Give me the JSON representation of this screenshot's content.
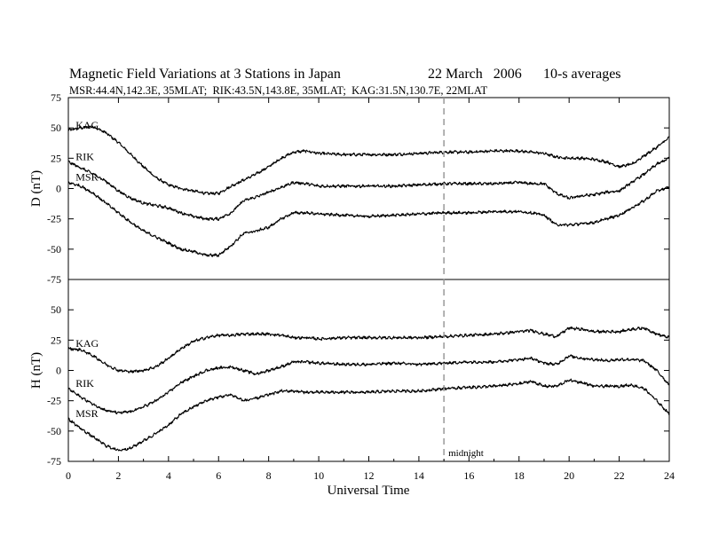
{
  "chart_data": {
    "type": "line",
    "title": "Magnetic Field Variations at 3 Stations in Japan",
    "date": "22 March   2006",
    "averaging": "10-s averages",
    "subtitle": "MSR:44.4N,142.3E, 35MLAT;  RIK:43.5N,143.8E, 35MLAT;  KAG:31.5N,130.7E, 22MLAT",
    "xlabel": "Universal Time",
    "xlim": [
      0,
      24
    ],
    "xticks": [
      0,
      2,
      4,
      6,
      8,
      10,
      12,
      14,
      16,
      18,
      20,
      22,
      24
    ],
    "midnight_marker": {
      "x": 15,
      "label": "midnight"
    },
    "panels": [
      {
        "ylabel": "D (nT)",
        "ylim": [
          -75,
          75
        ],
        "yticks": [
          75,
          50,
          25,
          0,
          -25,
          -50,
          -75
        ],
        "series": [
          {
            "name": "KAG",
            "x": [
              0,
              0.5,
              1,
              1.5,
              2,
              2.5,
              3,
              3.5,
              4,
              4.5,
              5,
              5.5,
              6,
              6.5,
              7,
              7.5,
              8,
              8.5,
              9,
              9.5,
              10,
              11,
              12,
              13,
              14,
              15,
              16,
              17,
              18,
              18.5,
              19,
              19.5,
              20,
              20.5,
              21,
              21.5,
              22,
              22.5,
              23,
              23.5,
              24
            ],
            "y": [
              48,
              50,
              51,
              46,
              38,
              28,
              18,
              9,
              3,
              0,
              -2,
              -4,
              -4,
              2,
              7,
              12,
              18,
              25,
              30,
              31,
              29,
              28,
              28,
              28,
              29,
              30,
              30,
              31,
              31,
              30,
              29,
              26,
              25,
              25,
              24,
              22,
              18,
              20,
              27,
              34,
              42
            ]
          },
          {
            "name": "RIK",
            "x": [
              0,
              0.5,
              1,
              1.5,
              2,
              2.5,
              3,
              3.5,
              4,
              4.5,
              5,
              5.5,
              6,
              6.5,
              7,
              7.5,
              8,
              8.5,
              9,
              9.5,
              10,
              11,
              12,
              13,
              14,
              15,
              16,
              17,
              18,
              18.5,
              19,
              19.5,
              20,
              20.5,
              21,
              21.5,
              22,
              22.5,
              23,
              23.5,
              24
            ],
            "y": [
              22,
              17,
              12,
              6,
              -2,
              -8,
              -12,
              -14,
              -16,
              -20,
              -23,
              -25,
              -25,
              -20,
              -10,
              -7,
              -3,
              1,
              5,
              4,
              2,
              2,
              2,
              2,
              3,
              4,
              4,
              4,
              5,
              4,
              4,
              -4,
              -8,
              -6,
              -5,
              -3,
              -2,
              5,
              12,
              20,
              25
            ]
          },
          {
            "name": "MSR",
            "x": [
              0,
              0.5,
              1,
              1.5,
              2,
              2.5,
              3,
              3.5,
              4,
              4.5,
              5,
              5.5,
              6,
              6.5,
              7,
              7.5,
              8,
              8.5,
              9,
              9.5,
              10,
              11,
              12,
              13,
              14,
              15,
              16,
              17,
              18,
              18.5,
              19,
              19.5,
              20,
              20.5,
              21,
              21.5,
              22,
              22.5,
              23,
              23.5,
              24
            ],
            "y": [
              5,
              2,
              -4,
              -12,
              -20,
              -28,
              -35,
              -40,
              -45,
              -50,
              -52,
              -55,
              -55,
              -47,
              -37,
              -35,
              -32,
              -25,
              -20,
              -20,
              -21,
              -22,
              -23,
              -22,
              -21,
              -20,
              -20,
              -19,
              -19,
              -20,
              -22,
              -30,
              -30,
              -29,
              -28,
              -25,
              -22,
              -16,
              -10,
              -2,
              1
            ]
          }
        ]
      },
      {
        "ylabel": "H (nT)",
        "ylim": [
          -75,
          75
        ],
        "yticks": [
          75,
          50,
          25,
          0,
          -25,
          -50,
          -75
        ],
        "series": [
          {
            "name": "KAG",
            "x": [
              0,
              0.5,
              1,
              1.5,
              2,
              2.5,
              3,
              3.5,
              4,
              4.5,
              5,
              5.5,
              6,
              6.5,
              7,
              7.5,
              8,
              8.5,
              9,
              9.5,
              10,
              11,
              12,
              13,
              14,
              15,
              16,
              17,
              18,
              18.5,
              19,
              19.5,
              20,
              20.5,
              21,
              21.5,
              22,
              22.5,
              23,
              23.5,
              24
            ],
            "y": [
              18,
              17,
              12,
              5,
              0,
              -1,
              0,
              3,
              10,
              18,
              24,
              27,
              29,
              29,
              30,
              30,
              30,
              29,
              27,
              27,
              26,
              27,
              27,
              27,
              27,
              28,
              29,
              30,
              32,
              33,
              30,
              28,
              35,
              34,
              32,
              32,
              32,
              34,
              35,
              30,
              27
            ]
          },
          {
            "name": "RIK",
            "x": [
              0,
              0.5,
              1,
              1.5,
              2,
              2.5,
              3,
              3.5,
              4,
              4.5,
              5,
              5.5,
              6,
              6.5,
              7,
              7.5,
              8,
              8.5,
              9,
              9.5,
              10,
              11,
              12,
              13,
              14,
              15,
              16,
              17,
              18,
              18.5,
              19,
              19.5,
              20,
              20.5,
              21,
              21.5,
              22,
              22.5,
              23,
              23.5,
              24
            ],
            "y": [
              -15,
              -22,
              -28,
              -33,
              -35,
              -34,
              -30,
              -25,
              -18,
              -10,
              -5,
              0,
              2,
              3,
              0,
              -3,
              0,
              3,
              7,
              7,
              6,
              5,
              5,
              6,
              5,
              6,
              7,
              7,
              9,
              10,
              6,
              5,
              12,
              10,
              9,
              8,
              9,
              9,
              8,
              0,
              -12
            ]
          },
          {
            "name": "MSR",
            "x": [
              0,
              0.5,
              1,
              1.5,
              2,
              2.5,
              3,
              3.5,
              4,
              4.5,
              5,
              5.5,
              6,
              6.5,
              7,
              7.5,
              8,
              8.5,
              9,
              9.5,
              10,
              11,
              12,
              13,
              14,
              15,
              16,
              17,
              18,
              18.5,
              19,
              19.5,
              20,
              20.5,
              21,
              21.5,
              22,
              22.5,
              23,
              23.5,
              24
            ],
            "y": [
              -40,
              -48,
              -55,
              -62,
              -66,
              -64,
              -58,
              -52,
              -45,
              -36,
              -30,
              -25,
              -22,
              -20,
              -25,
              -23,
              -20,
              -17,
              -17,
              -18,
              -18,
              -18,
              -18,
              -17,
              -17,
              -15,
              -14,
              -13,
              -11,
              -9,
              -13,
              -13,
              -8,
              -10,
              -13,
              -13,
              -13,
              -12,
              -15,
              -25,
              -36
            ]
          }
        ]
      }
    ]
  }
}
